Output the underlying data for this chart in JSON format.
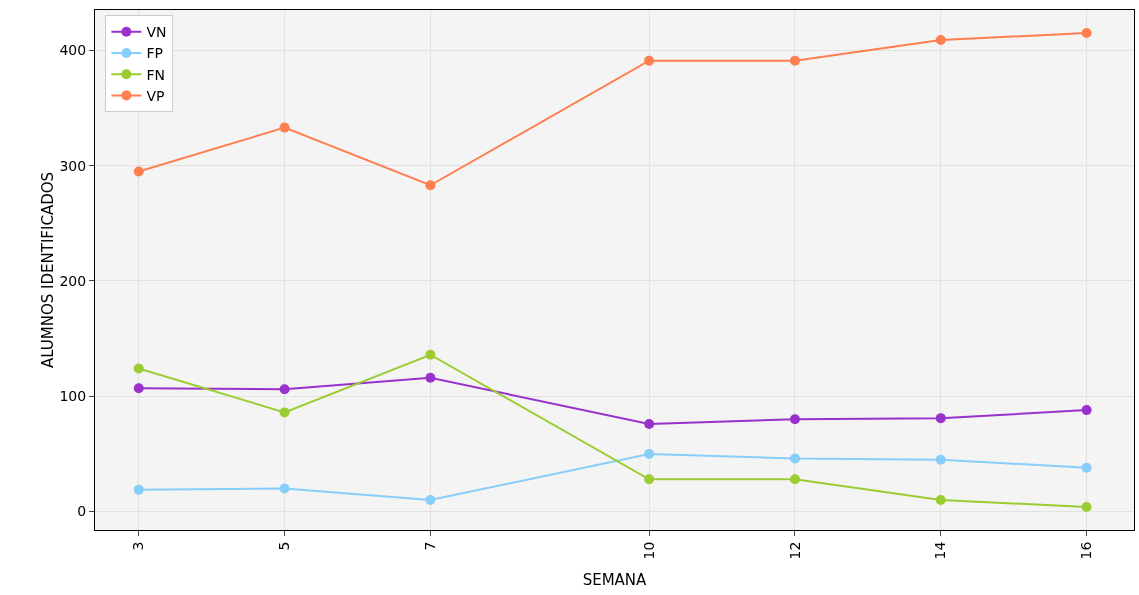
{
  "chart_data": {
    "type": "line",
    "xlabel": "SEMANA",
    "ylabel": "ALUMNOS IDENTIFICADOS",
    "x": [
      3,
      5,
      7,
      10,
      12,
      14,
      16
    ],
    "xlim": [
      2.4,
      16.65
    ],
    "xticks": [
      3,
      5,
      7,
      10,
      12,
      14,
      16
    ],
    "ylim": [
      -16,
      435
    ],
    "yticks": [
      0,
      100,
      200,
      300,
      400
    ],
    "series": [
      {
        "name": "VN",
        "color": "#9932cc",
        "values": [
          107,
          106,
          116,
          76,
          80,
          81,
          88
        ]
      },
      {
        "name": "FP",
        "color": "#87cefa",
        "values": [
          19,
          20,
          10,
          50,
          46,
          45,
          38
        ]
      },
      {
        "name": "FN",
        "color": "#9acd32",
        "values": [
          124,
          86,
          136,
          28,
          28,
          10,
          4
        ]
      },
      {
        "name": "VP",
        "color": "#ff7f50",
        "values": [
          295,
          333,
          283,
          391,
          391,
          409,
          415
        ]
      }
    ],
    "grid": true,
    "legend": "top left",
    "marker": "circle",
    "line_style": "solid"
  }
}
